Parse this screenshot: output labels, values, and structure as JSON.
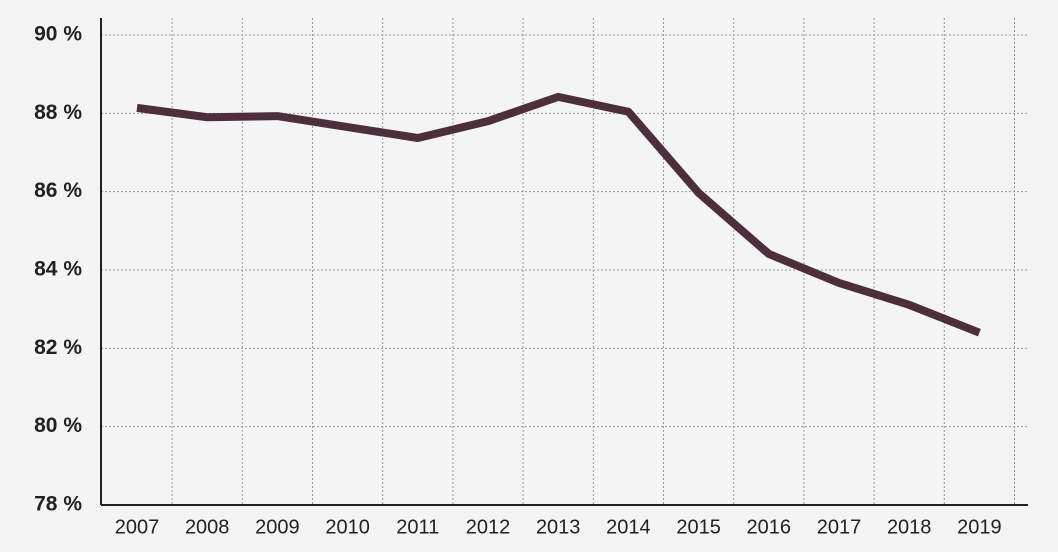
{
  "chart_data": {
    "type": "line",
    "categories": [
      "2007",
      "2008",
      "2009",
      "2010",
      "2011",
      "2012",
      "2013",
      "2014",
      "2015",
      "2016",
      "2017",
      "2018",
      "2019"
    ],
    "values": [
      88.14,
      87.9,
      87.93,
      87.65,
      87.37,
      87.8,
      88.42,
      88.04,
      85.97,
      84.41,
      83.67,
      83.11,
      82.4
    ],
    "color": "#4d2f3b",
    "ylim": [
      78,
      90
    ],
    "yticks": [
      {
        "value": 78,
        "label": "78 %"
      },
      {
        "value": 80,
        "label": "80 %"
      },
      {
        "value": 82,
        "label": "82 %"
      },
      {
        "value": 84,
        "label": "84 %"
      },
      {
        "value": 86,
        "label": "86 %"
      },
      {
        "value": 88,
        "label": "88 %"
      },
      {
        "value": 90,
        "label": "90 %"
      }
    ],
    "grid": true
  }
}
